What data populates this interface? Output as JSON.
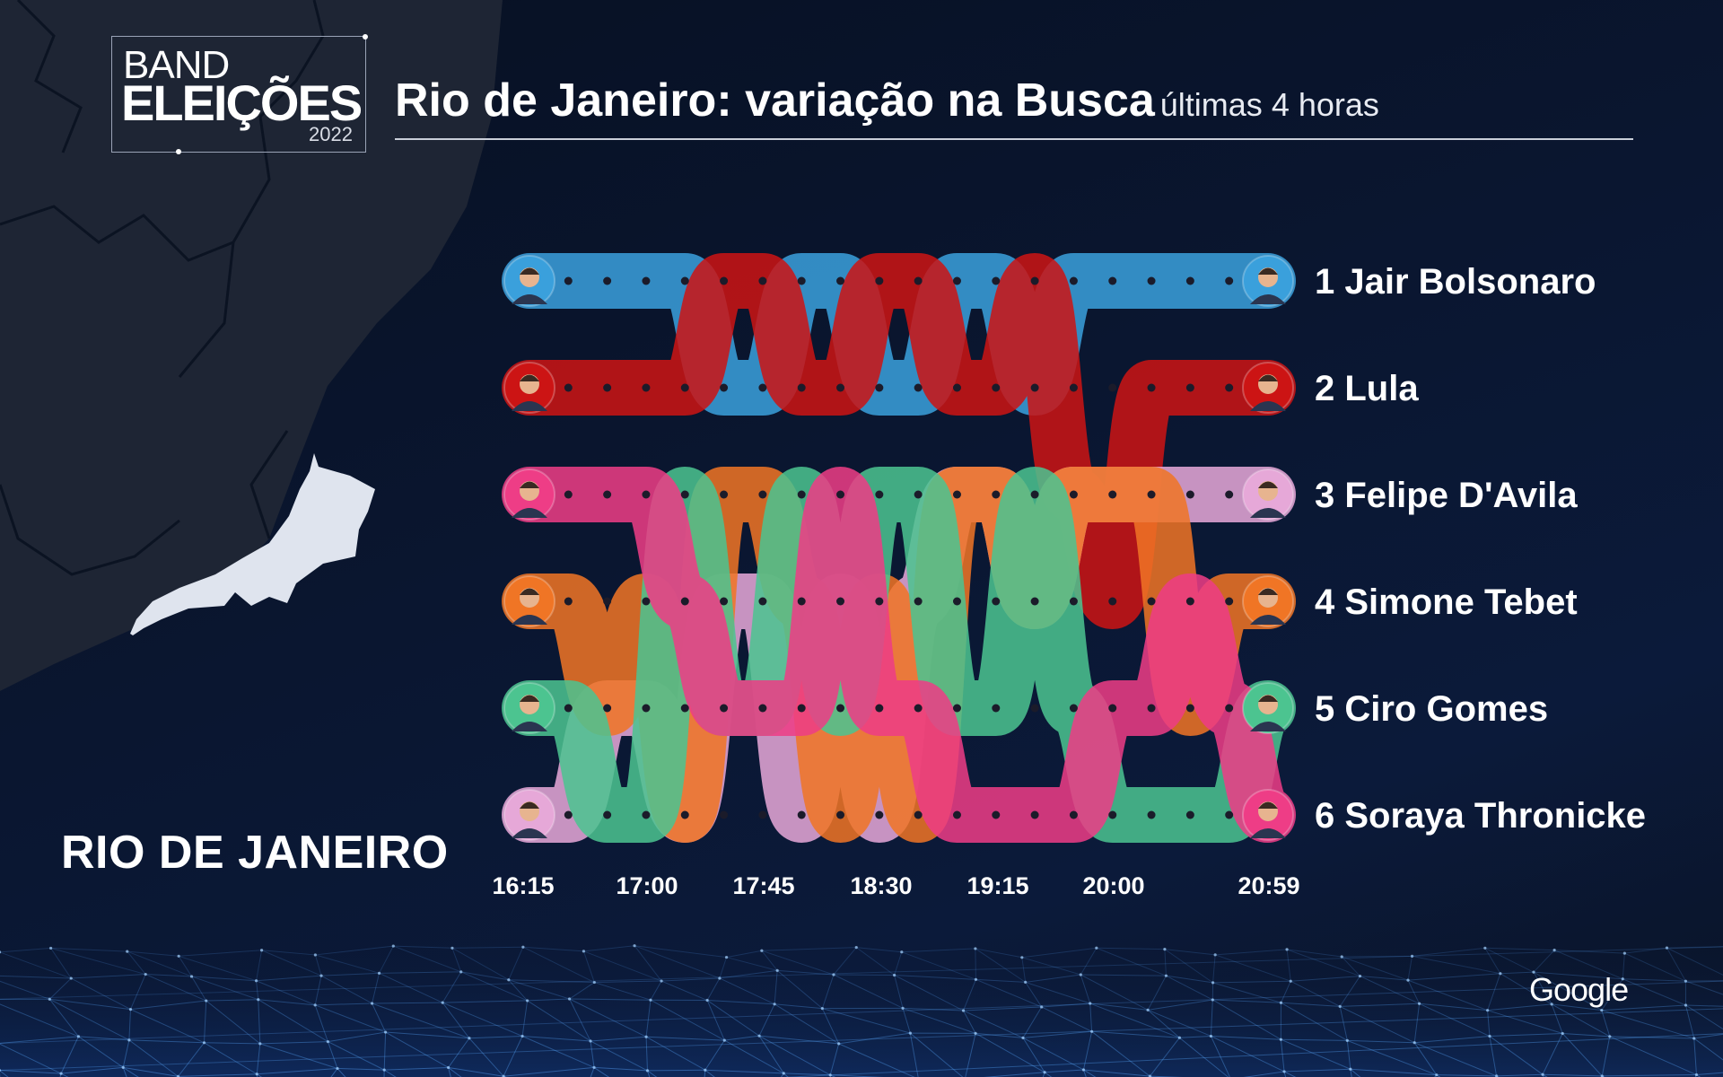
{
  "brand": {
    "line1": "BAND",
    "line2": "ELEIÇÕES",
    "year": "2022"
  },
  "title": "Rio de Janeiro: variação na Busca",
  "subtitle": "últimas 4 horas",
  "region_label": "RIO DE JANEIRO",
  "google_label": "Google",
  "colors": {
    "Jair Bolsonaro": "#3aa0dc",
    "Lula": "#cc1414",
    "Felipe D'Avila": "#e6a8d8",
    "Simone Tebet": "#f07525",
    "Ciro Gomes": "#4cc490",
    "Soraya Thronicke": "#ee3d86"
  },
  "chart_data": {
    "type": "bump",
    "x_ticks": [
      "16:15",
      "17:00",
      "17:45",
      "18:30",
      "19:15",
      "20:00",
      "20:59"
    ],
    "final_ranking": [
      {
        "rank": "1",
        "name": "Jair Bolsonaro"
      },
      {
        "rank": "2",
        "name": "Lula"
      },
      {
        "rank": "3",
        "name": "Felipe D'Avila"
      },
      {
        "rank": "4",
        "name": "Simone Tebet"
      },
      {
        "rank": "5",
        "name": "Ciro Gomes"
      },
      {
        "rank": "6",
        "name": "Soraya Thronicke"
      }
    ],
    "start_order": [
      "Jair Bolsonaro",
      "Lula",
      "Soraya Thronicke",
      "Simone Tebet",
      "Ciro Gomes",
      "Felipe D'Avila"
    ],
    "series": [
      {
        "name": "Jair Bolsonaro",
        "ranks": [
          1,
          1,
          1,
          1,
          1,
          2,
          2,
          1,
          1,
          2,
          2,
          1,
          1,
          2,
          1,
          1,
          1,
          1,
          1,
          1
        ]
      },
      {
        "name": "Lula",
        "ranks": [
          2,
          2,
          2,
          2,
          2,
          1,
          1,
          2,
          2,
          1,
          1,
          2,
          2,
          1,
          3,
          4,
          2,
          2,
          2,
          2
        ]
      },
      {
        "name": "Felipe D'Avila",
        "ranks": [
          6,
          6,
          5,
          5,
          6,
          4,
          4,
          6,
          4,
          6,
          4,
          3,
          3,
          4,
          3,
          3,
          3,
          3,
          3,
          3
        ]
      },
      {
        "name": "Simone Tebet",
        "ranks": [
          4,
          4,
          5,
          4,
          6,
          3,
          3,
          4,
          6,
          4,
          6,
          3,
          3,
          4,
          3,
          3,
          3,
          5,
          4,
          4
        ]
      },
      {
        "name": "Ciro Gomes",
        "ranks": [
          5,
          5,
          6,
          6,
          3,
          5,
          5,
          3,
          5,
          3,
          3,
          5,
          5,
          3,
          5,
          6,
          6,
          6,
          6,
          5
        ]
      },
      {
        "name": "Soraya Thronicke",
        "ranks": [
          3,
          3,
          3,
          3,
          4,
          5,
          5,
          5,
          3,
          5,
          5,
          6,
          6,
          6,
          6,
          5,
          5,
          4,
          5,
          6
        ]
      }
    ],
    "grid": false,
    "legend": "right"
  }
}
